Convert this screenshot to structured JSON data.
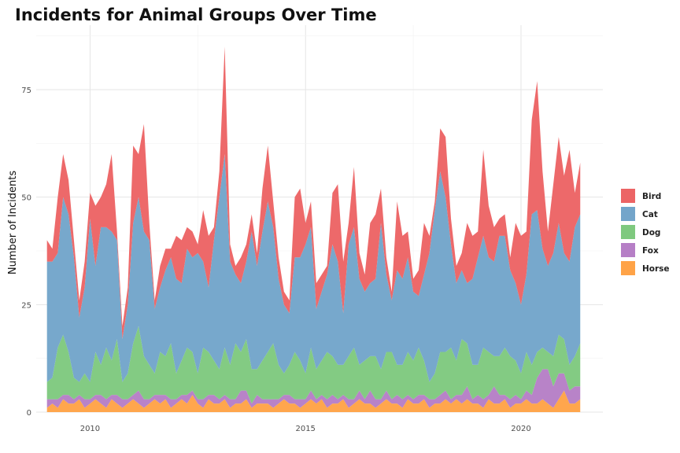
{
  "chart_data": {
    "type": "area",
    "title": "Incidents for Animal Groups Over Time",
    "xlabel": "",
    "ylabel": "Number of Incidents",
    "xlim": [
      2008.75,
      2021.9
    ],
    "ylim": [
      0,
      90
    ],
    "x_ticks": [
      2010,
      2015,
      2020
    ],
    "y_ticks": [
      0,
      25,
      50,
      75
    ],
    "grid": true,
    "legend": "right",
    "stacked": true,
    "x": [
      2009.0,
      2009.125,
      2009.25,
      2009.375,
      2009.5,
      2009.625,
      2009.75,
      2009.875,
      2010.0,
      2010.125,
      2010.25,
      2010.375,
      2010.5,
      2010.625,
      2010.75,
      2010.875,
      2011.0,
      2011.125,
      2011.25,
      2011.375,
      2011.5,
      2011.625,
      2011.75,
      2011.875,
      2012.0,
      2012.125,
      2012.25,
      2012.375,
      2012.5,
      2012.625,
      2012.75,
      2012.875,
      2013.0,
      2013.125,
      2013.25,
      2013.375,
      2013.5,
      2013.625,
      2013.75,
      2013.875,
      2014.0,
      2014.125,
      2014.25,
      2014.375,
      2014.5,
      2014.625,
      2014.75,
      2014.875,
      2015.0,
      2015.125,
      2015.25,
      2015.375,
      2015.5,
      2015.625,
      2015.75,
      2015.875,
      2016.0,
      2016.125,
      2016.25,
      2016.375,
      2016.5,
      2016.625,
      2016.75,
      2016.875,
      2017.0,
      2017.125,
      2017.25,
      2017.375,
      2017.5,
      2017.625,
      2017.75,
      2017.875,
      2018.0,
      2018.125,
      2018.25,
      2018.375,
      2018.5,
      2018.625,
      2018.75,
      2018.875,
      2019.0,
      2019.125,
      2019.25,
      2019.375,
      2019.5,
      2019.625,
      2019.75,
      2019.875,
      2020.0,
      2020.125,
      2020.25,
      2020.375,
      2020.5,
      2020.625,
      2020.75,
      2020.875,
      2021.0,
      2021.125,
      2021.25,
      2021.375
    ],
    "series": [
      {
        "name": "Horse",
        "color": "#FFA347",
        "values": [
          1,
          2,
          1,
          3,
          2,
          2,
          3,
          1,
          2,
          3,
          2,
          1,
          3,
          2,
          1,
          2,
          3,
          2,
          1,
          2,
          3,
          2,
          3,
          1,
          2,
          3,
          2,
          4,
          2,
          1,
          3,
          2,
          2,
          3,
          1,
          2,
          2,
          3,
          1,
          2,
          2,
          2,
          1,
          2,
          3,
          2,
          2,
          1,
          2,
          3,
          2,
          3,
          1,
          2,
          2,
          3,
          1,
          2,
          3,
          2,
          2,
          1,
          2,
          3,
          2,
          2,
          1,
          3,
          2,
          2,
          3,
          1,
          2,
          2,
          3,
          2,
          3,
          2,
          3,
          2,
          2,
          1,
          3,
          2,
          2,
          3,
          1,
          2,
          2,
          3,
          2,
          2,
          3,
          2,
          1,
          3,
          5,
          2,
          2,
          3
        ]
      },
      {
        "name": "Fox",
        "color": "#B67FC6",
        "values": [
          2,
          1,
          2,
          1,
          2,
          1,
          1,
          2,
          1,
          1,
          2,
          2,
          1,
          2,
          2,
          1,
          1,
          3,
          2,
          1,
          1,
          2,
          1,
          2,
          1,
          1,
          2,
          1,
          1,
          2,
          1,
          2,
          1,
          1,
          2,
          1,
          3,
          2,
          1,
          2,
          1,
          1,
          2,
          1,
          1,
          2,
          1,
          2,
          1,
          2,
          1,
          1,
          2,
          2,
          1,
          1,
          2,
          1,
          2,
          1,
          3,
          2,
          1,
          2,
          1,
          2,
          2,
          1,
          1,
          2,
          1,
          2,
          1,
          2,
          2,
          1,
          1,
          2,
          3,
          1,
          2,
          2,
          1,
          4,
          2,
          1,
          2,
          2,
          1,
          2,
          2,
          6,
          7,
          8,
          5,
          6,
          4,
          3,
          4,
          3
        ]
      },
      {
        "name": "Dog",
        "color": "#7FC97F",
        "values": [
          4,
          5,
          12,
          14,
          10,
          5,
          3,
          6,
          4,
          10,
          7,
          12,
          8,
          13,
          4,
          6,
          12,
          15,
          10,
          8,
          5,
          10,
          9,
          13,
          6,
          8,
          11,
          9,
          6,
          12,
          10,
          8,
          7,
          11,
          8,
          13,
          9,
          12,
          8,
          6,
          9,
          11,
          13,
          8,
          5,
          7,
          11,
          9,
          6,
          10,
          7,
          8,
          11,
          9,
          8,
          7,
          10,
          12,
          6,
          9,
          8,
          10,
          7,
          9,
          11,
          7,
          8,
          10,
          9,
          11,
          8,
          4,
          6,
          10,
          9,
          12,
          8,
          13,
          10,
          8,
          7,
          12,
          10,
          7,
          9,
          11,
          10,
          8,
          6,
          9,
          7,
          6,
          5,
          4,
          7,
          9,
          8,
          6,
          7,
          10
        ]
      },
      {
        "name": "Cat",
        "color": "#73A5CA",
        "values": [
          28,
          27,
          22,
          32,
          32,
          28,
          15,
          20,
          38,
          20,
          32,
          28,
          30,
          23,
          10,
          16,
          28,
          30,
          29,
          29,
          15,
          15,
          20,
          20,
          22,
          18,
          23,
          22,
          28,
          20,
          15,
          28,
          40,
          45,
          24,
          16,
          16,
          18,
          32,
          24,
          30,
          35,
          27,
          20,
          16,
          12,
          22,
          24,
          30,
          28,
          14,
          16,
          18,
          26,
          24,
          12,
          26,
          28,
          20,
          16,
          17,
          18,
          34,
          18,
          12,
          22,
          20,
          22,
          16,
          12,
          20,
          30,
          38,
          42,
          36,
          24,
          18,
          16,
          14,
          20,
          25,
          26,
          22,
          22,
          28,
          26,
          20,
          18,
          16,
          18,
          35,
          33,
          23,
          20,
          24,
          26,
          20,
          24,
          30,
          30
        ]
      },
      {
        "name": "Bird",
        "color": "#EC6465",
        "values": [
          5,
          3,
          13,
          10,
          8,
          4,
          4,
          6,
          6,
          14,
          7,
          10,
          18,
          2,
          3,
          4,
          18,
          10,
          25,
          4,
          2,
          5,
          5,
          2,
          10,
          10,
          5,
          6,
          2,
          12,
          12,
          3,
          6,
          25,
          4,
          2,
          6,
          4,
          4,
          3,
          10,
          13,
          6,
          5,
          3,
          3,
          14,
          16,
          5,
          6,
          6,
          4,
          2,
          12,
          18,
          12,
          5,
          14,
          6,
          4,
          14,
          15,
          8,
          4,
          2,
          16,
          10,
          6,
          3,
          6,
          12,
          4,
          2,
          10,
          14,
          6,
          4,
          4,
          14,
          10,
          6,
          20,
          12,
          8,
          4,
          5,
          3,
          14,
          16,
          10,
          22,
          30,
          18,
          8,
          16,
          20,
          18,
          26,
          8,
          12
        ]
      }
    ]
  }
}
